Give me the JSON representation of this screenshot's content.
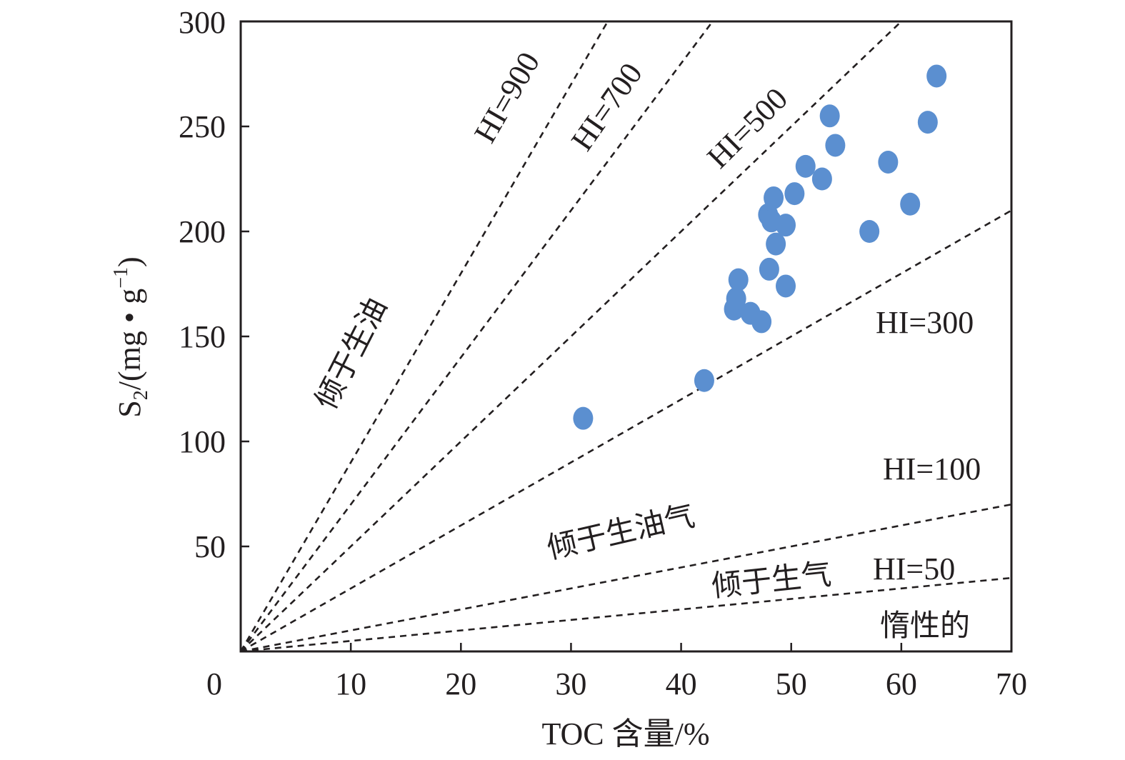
{
  "chart_data": {
    "type": "scatter",
    "xlabel": "TOC 含量/%",
    "ylabel": {
      "main": "S",
      "sub": "2",
      "rest": "/(mg • g",
      "sup": "−1",
      "close": ")"
    },
    "xlim": [
      0,
      70
    ],
    "ylim": [
      0,
      300
    ],
    "x_ticks": [
      0,
      10,
      20,
      30,
      40,
      50,
      60,
      70
    ],
    "y_ticks": [
      50,
      100,
      150,
      200,
      250,
      300
    ],
    "grid": false,
    "marker_color": "#5b8fd0",
    "line_color": "#231f20",
    "points": [
      {
        "x": 31.1,
        "y": 111
      },
      {
        "x": 42.1,
        "y": 129
      },
      {
        "x": 44.8,
        "y": 163
      },
      {
        "x": 45.0,
        "y": 168
      },
      {
        "x": 45.2,
        "y": 177
      },
      {
        "x": 46.3,
        "y": 161
      },
      {
        "x": 47.3,
        "y": 157
      },
      {
        "x": 48.0,
        "y": 182
      },
      {
        "x": 47.9,
        "y": 208
      },
      {
        "x": 48.2,
        "y": 205
      },
      {
        "x": 48.4,
        "y": 216
      },
      {
        "x": 48.6,
        "y": 194
      },
      {
        "x": 49.5,
        "y": 174
      },
      {
        "x": 49.5,
        "y": 203
      },
      {
        "x": 50.3,
        "y": 218
      },
      {
        "x": 51.3,
        "y": 231
      },
      {
        "x": 52.8,
        "y": 225
      },
      {
        "x": 53.5,
        "y": 255
      },
      {
        "x": 54.0,
        "y": 241
      },
      {
        "x": 57.1,
        "y": 200
      },
      {
        "x": 58.8,
        "y": 233
      },
      {
        "x": 60.8,
        "y": 213
      },
      {
        "x": 62.4,
        "y": 252
      },
      {
        "x": 63.2,
        "y": 274
      }
    ],
    "reference_lines": [
      {
        "hi": 900,
        "label": "HI=900"
      },
      {
        "hi": 700,
        "label": "HI=700"
      },
      {
        "hi": 500,
        "label": "HI=500"
      },
      {
        "hi": 300,
        "label": "HI=300"
      },
      {
        "hi": 100,
        "label": "HI=100"
      },
      {
        "hi": 50,
        "label": "HI=50"
      }
    ],
    "regions": [
      {
        "label": "倾于生油"
      },
      {
        "label": "倾于生油气"
      },
      {
        "label": "倾于生气"
      },
      {
        "label": "惰性的"
      }
    ]
  }
}
